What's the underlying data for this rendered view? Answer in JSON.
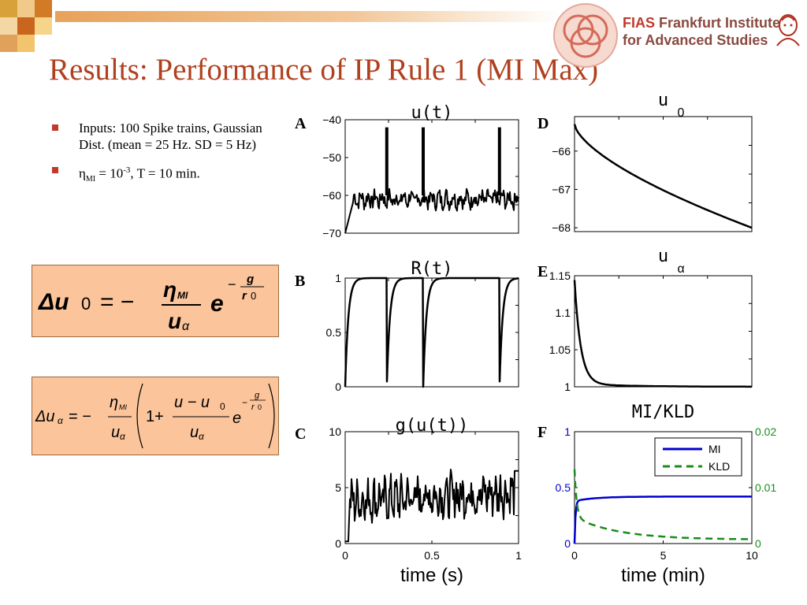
{
  "title": "Results: Performance of IP Rule 1 (MI Max)",
  "logo": {
    "line1_a": "FIAS",
    "line1_b": "Frankfurt Institute",
    "line2": "for Advanced Studies"
  },
  "bullets": [
    {
      "text": "Inputs: 100 Spike trains, Gaussian Dist. (mean = 25 Hz. SD = 5 Hz)"
    },
    {
      "eta": "η",
      "eta_sub": "MI",
      "eq_text": " = 10",
      "exp": "-3",
      "tail": ", T = 10 min."
    }
  ],
  "equations": {
    "eq1": {
      "lhs": "Δu",
      "lhs_sub": "0",
      "eq": "= −",
      "num": "η",
      "num_sub": "MI",
      "den": "u",
      "den_sub": "α",
      "e": "e",
      "exp_minus": "−",
      "exp_num": "g",
      "exp_den": "r",
      "exp_den_sub": "0"
    },
    "eq2": {
      "lhs": "Δu",
      "lhs_sub": "α",
      "eq": "= −",
      "num": "η",
      "num_sub": "MI",
      "den": "u",
      "den_sub": "α",
      "one_plus": "1+",
      "num2": "u − u",
      "num2_sub": "0",
      "den2": "u",
      "den2_sub": "α",
      "e": "e",
      "exp_minus": "−",
      "exp_num": "g",
      "exp_den": "r",
      "exp_den_sub": "0"
    }
  },
  "colors": {
    "title": "#b1401e",
    "bullet": "#c0392b",
    "eqbox": "#fbc49a",
    "mi": "#0000cc",
    "kld": "#1a8c1a"
  },
  "chart_data": [
    {
      "id": "A",
      "type": "line",
      "title": "u(t)",
      "yticks": [
        "-40",
        "-50",
        "-60",
        "-70"
      ],
      "ylim": [
        -70,
        -40
      ],
      "xlim": [
        0,
        1
      ],
      "spikes_x": [
        0.24,
        0.45,
        0.89
      ],
      "baseline": -61
    },
    {
      "id": "B",
      "type": "line",
      "title": "R(t)",
      "yticks": [
        "1",
        "0.5",
        "0"
      ],
      "ylim": [
        0,
        1
      ],
      "xlim": [
        0,
        1
      ],
      "dips_x": [
        0.0,
        0.24,
        0.45,
        0.89
      ]
    },
    {
      "id": "C",
      "type": "line",
      "title": "g(u(t))",
      "yticks": [
        "10",
        "5",
        "0"
      ],
      "xticks": [
        "0",
        "0.5",
        "1"
      ],
      "ylim": [
        0,
        10
      ],
      "xlim": [
        0,
        1
      ],
      "xlabel": "time (s)",
      "mean": 3.8
    },
    {
      "id": "D",
      "type": "line",
      "title": "u",
      "title_sub": "0",
      "yticks": [
        "-66",
        "-67",
        "-68"
      ],
      "ylim": [
        -68.1,
        -65.1
      ],
      "xlim": [
        0,
        10
      ],
      "start": -65.3,
      "end": -68.0
    },
    {
      "id": "E",
      "type": "line",
      "title": "u",
      "title_sub": "α",
      "yticks": [
        "1.15",
        "1.1",
        "1.05",
        "1"
      ],
      "ylim": [
        1,
        1.15
      ],
      "xlim": [
        0,
        10
      ],
      "start": 1.14,
      "end": 1.0
    },
    {
      "id": "F",
      "type": "line",
      "title": "MI/KLD",
      "xlabel": "time (min)",
      "xticks": [
        "0",
        "5",
        "10"
      ],
      "yticks_left": [
        "1",
        "0.5",
        "0"
      ],
      "yticks_right": [
        "0.02",
        "0.01",
        "0"
      ],
      "xlim": [
        0,
        10
      ],
      "ylim_left": [
        0,
        1
      ],
      "ylim_right": [
        0,
        0.02
      ],
      "series": [
        {
          "name": "MI",
          "axis": "left",
          "plateau": 0.42
        },
        {
          "name": "KLD",
          "axis": "right",
          "start": 0.015,
          "end": 0.0007
        }
      ]
    }
  ]
}
